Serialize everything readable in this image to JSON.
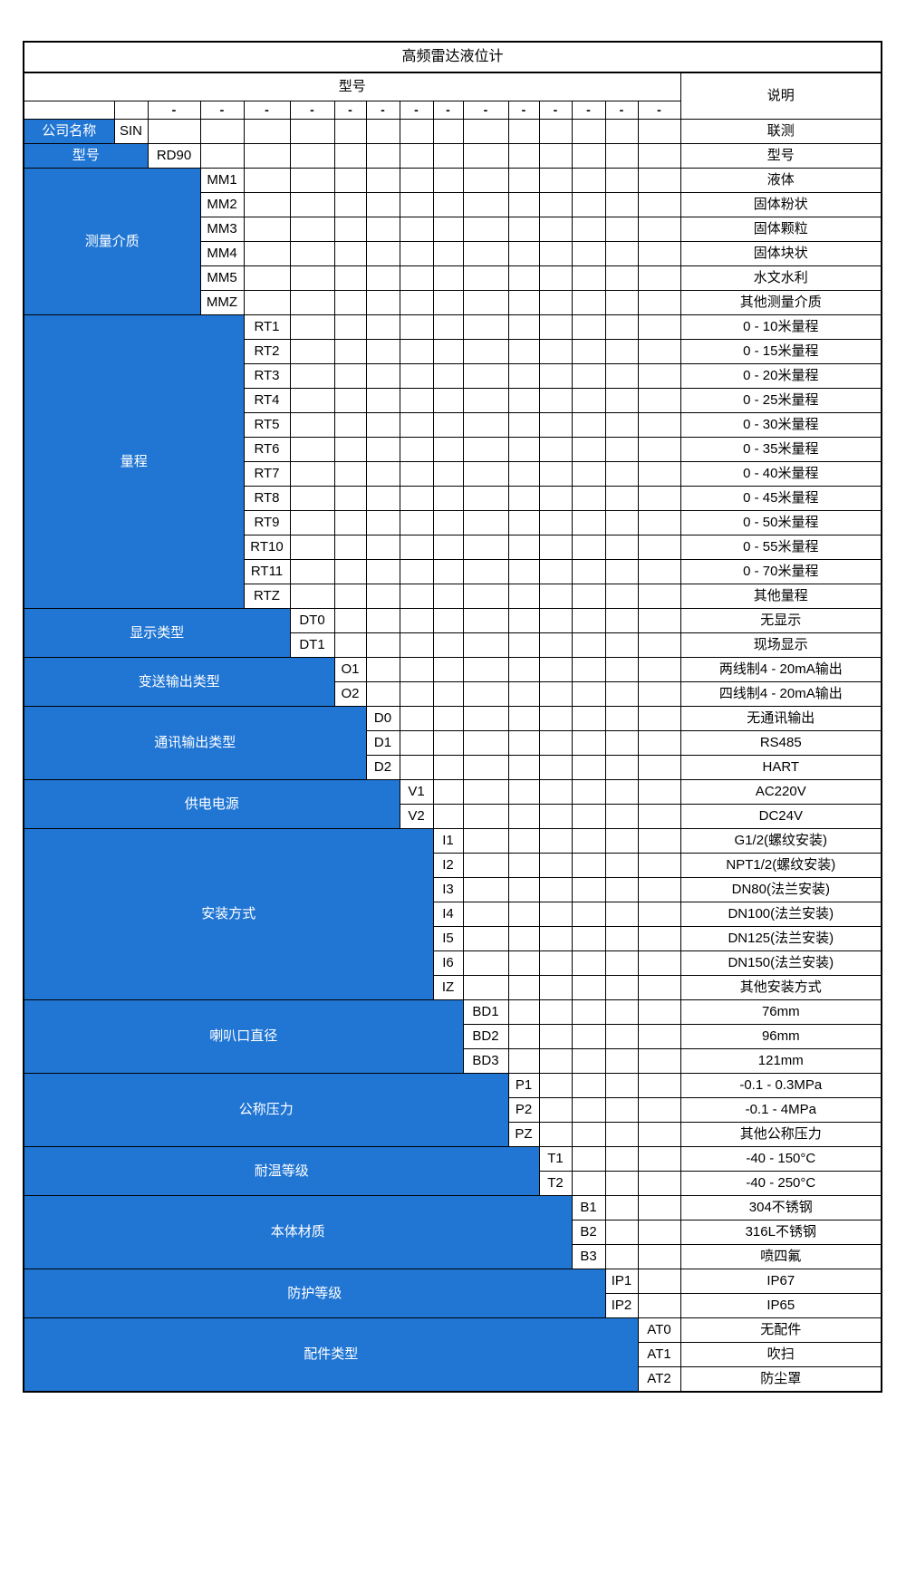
{
  "title": "高频雷达液位计",
  "header": {
    "model_label": "型号",
    "desc_label": "说明",
    "dash": "-"
  },
  "colors": {
    "category_blue": "#2176d4",
    "border_black": "#000000",
    "text_on_blue": "#ffffff",
    "text_black": "#000000"
  },
  "sections": [
    {
      "id": "company",
      "name": "公司名称",
      "code_col": 2,
      "rows": [
        {
          "code": "SIN",
          "desc": "联测"
        }
      ]
    },
    {
      "id": "model",
      "name": "型号",
      "code_col": 3,
      "rows": [
        {
          "code": "RD90",
          "desc": "型号"
        }
      ]
    },
    {
      "id": "measuring-medium",
      "name": "测量介质",
      "code_col": 4,
      "rows": [
        {
          "code": "MM1",
          "desc": "液体"
        },
        {
          "code": "MM2",
          "desc": "固体粉状"
        },
        {
          "code": "MM3",
          "desc": "固体颗粒"
        },
        {
          "code": "MM4",
          "desc": "固体块状"
        },
        {
          "code": "MM5",
          "desc": "水文水利"
        },
        {
          "code": "MMZ",
          "desc": "其他测量介质"
        }
      ]
    },
    {
      "id": "range",
      "name": "量程",
      "code_col": 5,
      "rows": [
        {
          "code": "RT1",
          "desc": "0 - 10米量程"
        },
        {
          "code": "RT2",
          "desc": "0 - 15米量程"
        },
        {
          "code": "RT3",
          "desc": "0 - 20米量程"
        },
        {
          "code": "RT4",
          "desc": "0 - 25米量程"
        },
        {
          "code": "RT5",
          "desc": "0 - 30米量程"
        },
        {
          "code": "RT6",
          "desc": "0 - 35米量程"
        },
        {
          "code": "RT7",
          "desc": "0 - 40米量程"
        },
        {
          "code": "RT8",
          "desc": "0 - 45米量程"
        },
        {
          "code": "RT9",
          "desc": "0 - 50米量程"
        },
        {
          "code": "RT10",
          "desc": "0 - 55米量程"
        },
        {
          "code": "RT11",
          "desc": "0 - 70米量程"
        },
        {
          "code": "RTZ",
          "desc": "其他量程"
        }
      ]
    },
    {
      "id": "display-type",
      "name": "显示类型",
      "code_col": 6,
      "rows": [
        {
          "code": "DT0",
          "desc": "无显示"
        },
        {
          "code": "DT1",
          "desc": "现场显示"
        }
      ]
    },
    {
      "id": "transmit-output-type",
      "name": "变送输出类型",
      "code_col": 7,
      "rows": [
        {
          "code": "O1",
          "desc": "两线制4 - 20mA输出"
        },
        {
          "code": "O2",
          "desc": "四线制4 - 20mA输出"
        }
      ]
    },
    {
      "id": "comm-output-type",
      "name": "通讯输出类型",
      "code_col": 8,
      "rows": [
        {
          "code": "D0",
          "desc": "无通讯输出"
        },
        {
          "code": "D1",
          "desc": "RS485"
        },
        {
          "code": "D2",
          "desc": "HART"
        }
      ]
    },
    {
      "id": "power-supply",
      "name": "供电电源",
      "code_col": 9,
      "rows": [
        {
          "code": "V1",
          "desc": "AC220V"
        },
        {
          "code": "V2",
          "desc": "DC24V"
        }
      ]
    },
    {
      "id": "installation",
      "name": "安装方式",
      "code_col": 10,
      "rows": [
        {
          "code": "I1",
          "desc": "G1/2(螺纹安装)"
        },
        {
          "code": "I2",
          "desc": "NPT1/2(螺纹安装)"
        },
        {
          "code": "I3",
          "desc": "DN80(法兰安装)"
        },
        {
          "code": "I4",
          "desc": "DN100(法兰安装)"
        },
        {
          "code": "I5",
          "desc": "DN125(法兰安装)"
        },
        {
          "code": "I6",
          "desc": "DN150(法兰安装)"
        },
        {
          "code": "IZ",
          "desc": "其他安装方式"
        }
      ]
    },
    {
      "id": "horn-diameter",
      "name": "喇叭口直径",
      "code_col": 11,
      "rows": [
        {
          "code": "BD1",
          "desc": "76mm"
        },
        {
          "code": "BD2",
          "desc": "96mm"
        },
        {
          "code": "BD3",
          "desc": "121mm"
        }
      ]
    },
    {
      "id": "nominal-pressure",
      "name": "公称压力",
      "code_col": 12,
      "rows": [
        {
          "code": "P1",
          "desc": "-0.1 - 0.3MPa"
        },
        {
          "code": "P2",
          "desc": "-0.1 - 4MPa"
        },
        {
          "code": "PZ",
          "desc": "其他公称压力"
        }
      ]
    },
    {
      "id": "temperature-rating",
      "name": "耐温等级",
      "code_col": 13,
      "rows": [
        {
          "code": "T1",
          "desc": "-40 - 150°C"
        },
        {
          "code": "T2",
          "desc": "-40 - 250°C"
        }
      ]
    },
    {
      "id": "body-material",
      "name": "本体材质",
      "code_col": 14,
      "rows": [
        {
          "code": "B1",
          "desc": "304不锈钢"
        },
        {
          "code": "B2",
          "desc": "316L不锈钢"
        },
        {
          "code": "B3",
          "desc": "喷四氟"
        }
      ]
    },
    {
      "id": "protection-rating",
      "name": "防护等级",
      "code_col": 15,
      "rows": [
        {
          "code": "IP1",
          "desc": "IP67"
        },
        {
          "code": "IP2",
          "desc": "IP65"
        }
      ]
    },
    {
      "id": "accessory-type",
      "name": "配件类型",
      "code_col": 16,
      "rows": [
        {
          "code": "AT0",
          "desc": "无配件"
        },
        {
          "code": "AT1",
          "desc": "吹扫"
        },
        {
          "code": "AT2",
          "desc": "防尘罩"
        }
      ]
    }
  ]
}
